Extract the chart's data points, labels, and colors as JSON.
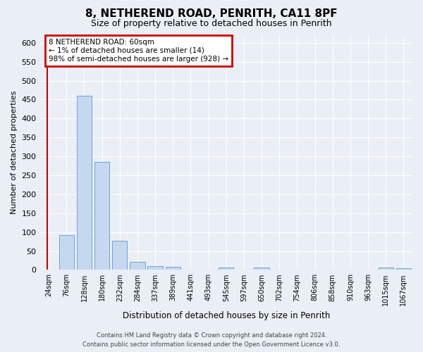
{
  "title": "8, NETHEREND ROAD, PENRITH, CA11 8PF",
  "subtitle": "Size of property relative to detached houses in Penrith",
  "xlabel": "Distribution of detached houses by size in Penrith",
  "ylabel": "Number of detached properties",
  "footer_line1": "Contains HM Land Registry data © Crown copyright and database right 2024.",
  "footer_line2": "Contains public sector information licensed under the Open Government Licence v3.0.",
  "categories": [
    "24sqm",
    "76sqm",
    "128sqm",
    "180sqm",
    "232sqm",
    "284sqm",
    "337sqm",
    "389sqm",
    "441sqm",
    "493sqm",
    "545sqm",
    "597sqm",
    "650sqm",
    "702sqm",
    "754sqm",
    "806sqm",
    "858sqm",
    "910sqm",
    "963sqm",
    "1015sqm",
    "1067sqm"
  ],
  "values": [
    0,
    92,
    460,
    285,
    77,
    22,
    10,
    9,
    0,
    0,
    6,
    0,
    7,
    0,
    0,
    0,
    0,
    0,
    0,
    7,
    5
  ],
  "bar_color": "#c5d8f0",
  "bar_edgecolor": "#5b9bd5",
  "highlight_color": "#cc0000",
  "annotation_text": "8 NETHEREND ROAD: 60sqm\n← 1% of detached houses are smaller (14)\n98% of semi-detached houses are larger (928) →",
  "annotation_box_color": "#cc0000",
  "ylim": [
    0,
    620
  ],
  "yticks": [
    0,
    50,
    100,
    150,
    200,
    250,
    300,
    350,
    400,
    450,
    500,
    550,
    600
  ],
  "bg_color": "#eaeef5",
  "plot_bg_color": "#eaeef5",
  "grid_color": "#ffffff",
  "title_fontsize": 11,
  "subtitle_fontsize": 9,
  "bar_width": 0.85
}
